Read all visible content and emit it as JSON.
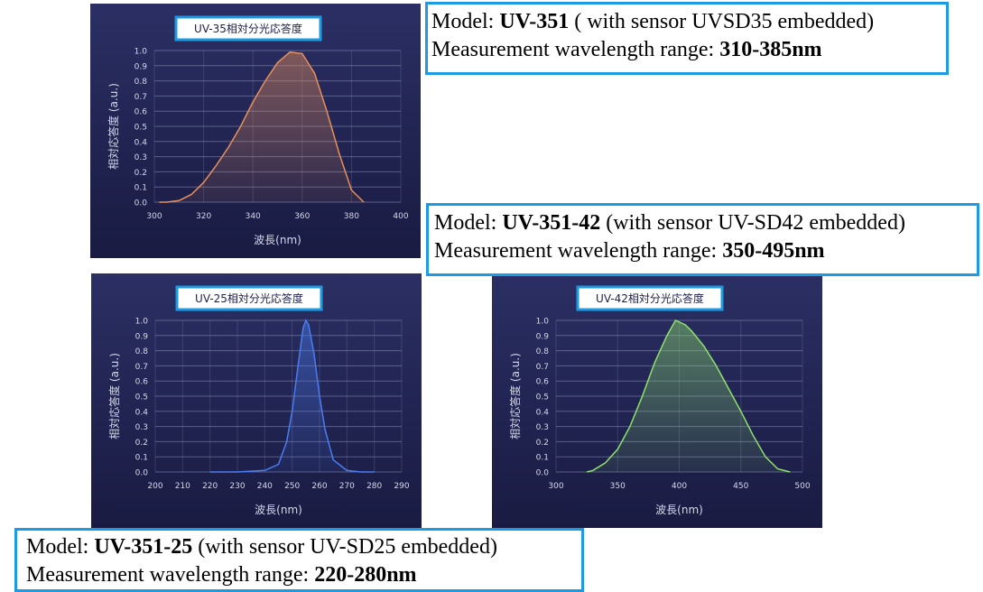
{
  "chart_data": [
    {
      "type": "line",
      "title": "UV-35相対分光応答度",
      "x_label": "波長(nm)",
      "y_label": "相対応答度 (a.u.)",
      "color": "#e8905a",
      "grid": true,
      "xlim": [
        300,
        400
      ],
      "xticks": [
        300,
        320,
        340,
        360,
        380,
        400
      ],
      "ylim": [
        0,
        1
      ],
      "yticks": [
        {
          "value": 0,
          "label": "0.0"
        },
        0.1,
        0.2,
        0.3,
        0.4,
        0.5,
        0.6,
        0.7,
        0.8,
        0.9,
        {
          "value": 1,
          "label": "1.0"
        }
      ],
      "x": [
        302,
        305,
        310,
        315,
        320,
        325,
        330,
        335,
        340,
        345,
        350,
        355,
        360,
        365,
        370,
        375,
        380,
        385
      ],
      "values": [
        0,
        0,
        0.01,
        0.05,
        0.13,
        0.24,
        0.36,
        0.5,
        0.66,
        0.8,
        0.92,
        0.99,
        0.98,
        0.85,
        0.6,
        0.32,
        0.08,
        0
      ]
    },
    {
      "type": "line",
      "title": "UV-25相対分光応答度",
      "x_label": "波長(nm)",
      "y_label": "相対応答度 (a.u.)",
      "color": "#4a7df2",
      "grid": true,
      "xlim": [
        200,
        290
      ],
      "xticks": [
        200,
        210,
        220,
        230,
        240,
        250,
        260,
        270,
        280,
        290
      ],
      "ylim": [
        0,
        1
      ],
      "yticks": [
        {
          "value": 0,
          "label": "0.0"
        },
        0.1,
        0.2,
        0.3,
        0.4,
        0.5,
        0.6,
        0.7,
        0.8,
        0.9,
        {
          "value": 1,
          "label": "1.0"
        }
      ],
      "x": [
        220,
        230,
        240,
        245,
        248,
        250,
        252,
        254,
        255,
        256,
        258,
        260,
        262,
        265,
        270,
        275,
        280
      ],
      "values": [
        0,
        0,
        0.01,
        0.05,
        0.2,
        0.4,
        0.68,
        0.95,
        1,
        0.97,
        0.78,
        0.5,
        0.28,
        0.08,
        0.01,
        0,
        0
      ]
    },
    {
      "type": "line",
      "title": "UV-42相対分光応答度",
      "x_label": "波長(nm)",
      "y_label": "相対応答度 (a.u.)",
      "color": "#8fe36a",
      "grid": true,
      "xlim": [
        300,
        500
      ],
      "xticks": [
        300,
        350,
        400,
        450,
        500
      ],
      "ylim": [
        0,
        1
      ],
      "yticks": [
        {
          "value": 0,
          "label": "0.0"
        },
        0.1,
        0.2,
        0.3,
        0.4,
        0.5,
        0.6,
        0.7,
        0.8,
        0.9,
        {
          "value": 1,
          "label": "1.0"
        }
      ],
      "x": [
        325,
        330,
        340,
        350,
        360,
        370,
        380,
        390,
        397,
        405,
        410,
        420,
        430,
        440,
        450,
        460,
        470,
        480,
        490
      ],
      "values": [
        0,
        0.01,
        0.06,
        0.15,
        0.3,
        0.5,
        0.72,
        0.9,
        1,
        0.97,
        0.93,
        0.83,
        0.7,
        0.55,
        0.4,
        0.24,
        0.1,
        0.02,
        0
      ]
    }
  ],
  "info_boxes": [
    {
      "model_label": "Model:",
      "model": "UV-351",
      "sensor": "( with sensor UVSD35 embedded)",
      "range_label": "Measurement wavelength range:",
      "range": "310-385nm"
    },
    {
      "model_label": "Model:",
      "model": "UV-351-42",
      "sensor": " (with sensor UV-SD42 embedded)",
      "range_label": "Measurement wavelength range:",
      "range": "350-495nm"
    },
    {
      "model_label": "Model:",
      "model": "UV-351-25",
      "sensor": "(with sensor UV-SD25 embedded)",
      "range_label": "Measurement wavelength range:",
      "range": "220-280nm"
    }
  ]
}
